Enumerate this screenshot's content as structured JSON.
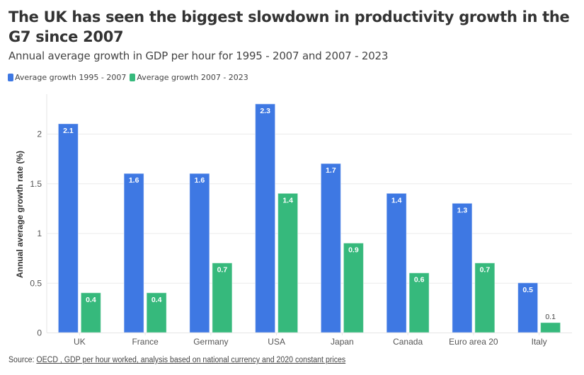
{
  "header": {
    "title": "The UK has seen the biggest slowdown in productivity growth in the G7 since 2007",
    "subtitle": "Annual average growth in GDP per hour for 1995 - 2007 and 2007 - 2023"
  },
  "colors": {
    "series_1995_2007": "#3e78e3",
    "series_2007_2023": "#36b97c",
    "grid": "#ebebeb",
    "text": "#333333"
  },
  "source": {
    "prefix": "Source: ",
    "link_text": "OECD , GDP per hour worked, analysis based on national currency and 2020 constant prices"
  },
  "chart_data": {
    "type": "bar",
    "title": "The UK has seen the biggest slowdown in productivity growth in the G7 since 2007",
    "subtitle": "Annual average growth in GDP per hour for 1995 - 2007 and 2007 - 2023",
    "xlabel": "",
    "ylabel": "Annual average growth rate (%)",
    "ylim": [
      0,
      2.4
    ],
    "yticks": [
      0,
      0.5,
      1,
      1.5,
      2
    ],
    "ytick_labels": [
      "0",
      "0.5",
      "1",
      "1.5",
      "2"
    ],
    "grid": true,
    "legend_position": "top-left",
    "categories": [
      "UK",
      "France",
      "Germany",
      "USA",
      "Japan",
      "Canada",
      "Euro area 20",
      "Italy"
    ],
    "series": [
      {
        "name": "Average growth 1995 - 2007",
        "color": "#3e78e3",
        "values": [
          2.1,
          1.6,
          1.6,
          2.3,
          1.7,
          1.4,
          1.3,
          0.5
        ]
      },
      {
        "name": "Average growth 2007 - 2023",
        "color": "#36b97c",
        "values": [
          0.4,
          0.4,
          0.7,
          1.4,
          0.9,
          0.6,
          0.7,
          0.1
        ]
      }
    ]
  }
}
